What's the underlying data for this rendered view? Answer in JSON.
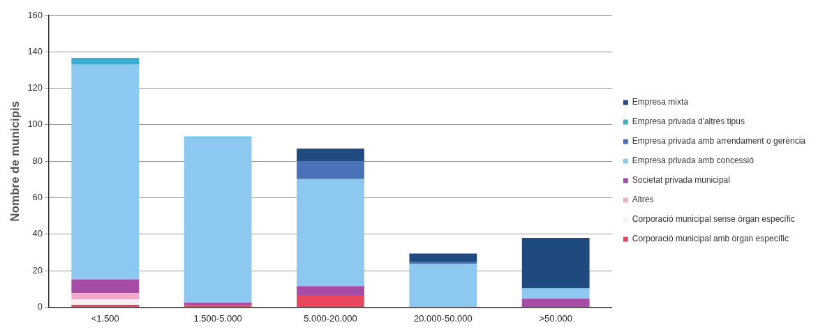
{
  "chart_data": {
    "type": "bar",
    "stacked": true,
    "ylabel": "Nombre de municipis",
    "categories": [
      "<1.500",
      "1.500-5.000",
      "5.000-20.000",
      "20.000-50.000",
      ">50.000"
    ],
    "series": [
      {
        "name": "Corporació municipal amb òrgan específic",
        "color": "#e8475e",
        "values": [
          1.3,
          1,
          6.7,
          0,
          0
        ]
      },
      {
        "name": "Corporació municipal sense òrgan específic",
        "color": "#f7eef2",
        "values": [
          3,
          0,
          0,
          0,
          0
        ]
      },
      {
        "name": "Altres",
        "color": "#f2a8c8",
        "values": [
          3.4,
          0,
          0,
          0,
          0
        ]
      },
      {
        "name": "Societat privada municipal",
        "color": "#a64ca6",
        "values": [
          7.6,
          1.5,
          4.8,
          0,
          4.6
        ]
      },
      {
        "name": "Empresa privada amb concessió",
        "color": "#8dc8f0",
        "values": [
          117.6,
          90.5,
          58.7,
          23.7,
          5.7
        ]
      },
      {
        "name": "Empresa privada amb arrendament o gerència",
        "color": "#4a72b8",
        "values": [
          0,
          0,
          9.8,
          1,
          0
        ]
      },
      {
        "name": "Empresa privada d'altres tipus",
        "color": "#3aaed0",
        "values": [
          3.8,
          0.6,
          0,
          0,
          0
        ]
      },
      {
        "name": "Empresa mixta",
        "color": "#1f4a80",
        "values": [
          0,
          0,
          7,
          4.7,
          27.7
        ]
      }
    ],
    "ylim": [
      0,
      160
    ],
    "yticks": [
      0,
      20,
      40,
      60,
      80,
      100,
      120,
      140,
      160
    ],
    "grid": "y",
    "legend": "right"
  }
}
